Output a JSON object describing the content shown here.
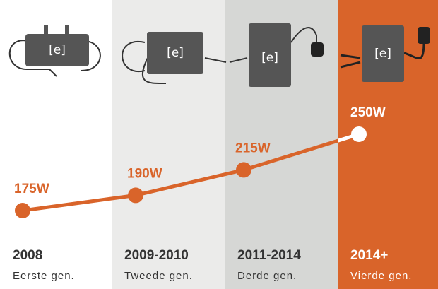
{
  "icon_label": "[e]",
  "chart_data": {
    "type": "line",
    "categories": [
      "2008",
      "2009-2010",
      "2011-2014",
      "2014+"
    ],
    "generations": [
      "Eerste gen.",
      "Tweede gen.",
      "Derde gen.",
      "Vierde gen."
    ],
    "values": [
      175,
      190,
      215,
      250
    ],
    "value_labels": [
      "175W",
      "190W",
      "215W",
      "250W"
    ],
    "color": "#d9642a",
    "column_colors": [
      "#ffffff",
      "#ebebea",
      "#d6d7d5",
      "#d9642a"
    ],
    "label_colors": [
      "#d9642a",
      "#d9642a",
      "#d9642a",
      "#ffffff"
    ],
    "category_colors": [
      "#333333",
      "#333333",
      "#333333",
      "#ffffff"
    ]
  }
}
